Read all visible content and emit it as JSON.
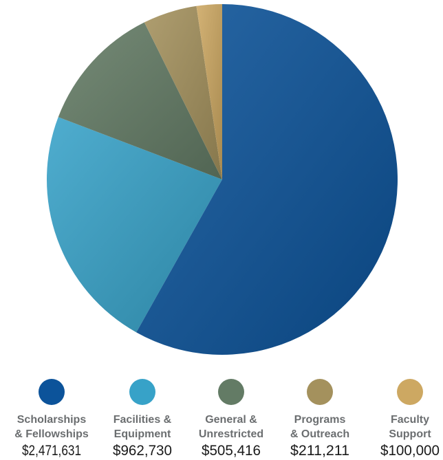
{
  "chart_data": {
    "type": "pie",
    "title": "",
    "legend_position": "bottom",
    "start_angle_deg": 0,
    "direction": "clockwise",
    "slices": [
      {
        "label_lines": [
          "Scholarships",
          "& Fellowships"
        ],
        "value": 2471631,
        "value_label": "$2,471,631",
        "color": "#0c539a"
      },
      {
        "label_lines": [
          "Facilities &",
          "Equipment"
        ],
        "value": 962730,
        "value_label": "$962,730",
        "color": "#37a2c8"
      },
      {
        "label_lines": [
          "General &",
          "Unrestricted"
        ],
        "value": 505416,
        "value_label": "$505,416",
        "color": "#637b65"
      },
      {
        "label_lines": [
          "Programs",
          "& Outreach"
        ],
        "value": 211211,
        "value_label": "$211,211",
        "color": "#a4915d"
      },
      {
        "label_lines": [
          "Faculty",
          "Support"
        ],
        "value": 100000,
        "value_label": "$100,000",
        "color": "#cda862"
      }
    ],
    "draw_order": [
      1,
      2,
      3,
      4,
      0
    ]
  }
}
